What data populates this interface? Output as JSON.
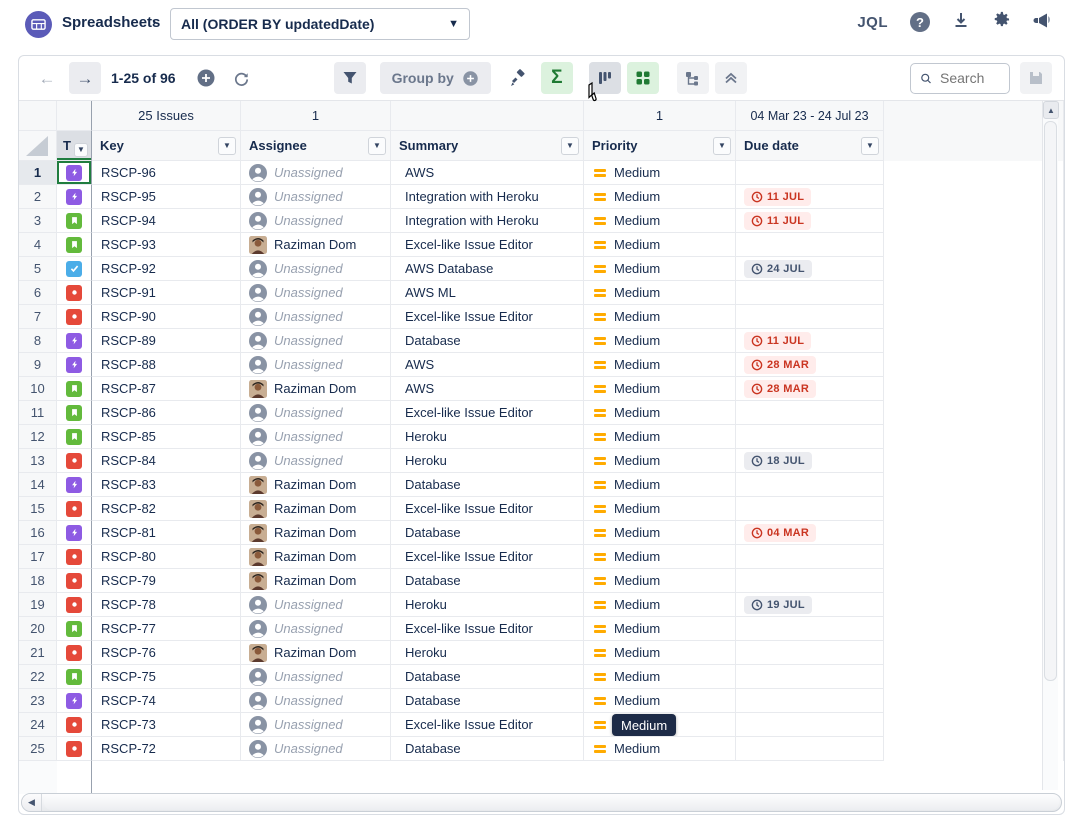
{
  "topbar": {
    "app_title": "Spreadsheets",
    "breadcrumb_chevron": "›",
    "view_selector": "All (ORDER BY updatedDate)",
    "jql_label": "JQL",
    "help_label": "?"
  },
  "toolbar": {
    "back_arrow": "←",
    "forward_arrow": "→",
    "pagination": "1-25 of 96",
    "group_by_label": "Group by",
    "sigma_label": "Σ",
    "search_placeholder": "Search"
  },
  "grid": {
    "summary_row": {
      "key": "25 Issues",
      "assignee": "1",
      "summary": "",
      "priority": "1",
      "due": "04 Mar 23 - 24 Jul 23"
    },
    "headers": {
      "type": "T",
      "key": "Key",
      "assignee": "Assignee",
      "summary": "Summary",
      "priority": "Priority",
      "due": "Due date"
    },
    "priority_tooltip": "Medium",
    "rows": [
      {
        "num": "1",
        "type": "epic",
        "key": "RSCP-96",
        "assignee": "Unassigned",
        "summary": "AWS",
        "priority": "Medium",
        "due": "",
        "due_style": ""
      },
      {
        "num": "2",
        "type": "epic",
        "key": "RSCP-95",
        "assignee": "Unassigned",
        "summary": "Integration with Heroku",
        "priority": "Medium",
        "due": "11 JUL",
        "due_style": "red"
      },
      {
        "num": "3",
        "type": "story",
        "key": "RSCP-94",
        "assignee": "Unassigned",
        "summary": "Integration with Heroku",
        "priority": "Medium",
        "due": "11 JUL",
        "due_style": "red"
      },
      {
        "num": "4",
        "type": "story",
        "key": "RSCP-93",
        "assignee": "Raziman Dom",
        "summary": "Excel-like Issue Editor",
        "priority": "Medium",
        "due": "",
        "due_style": ""
      },
      {
        "num": "5",
        "type": "task",
        "key": "RSCP-92",
        "assignee": "Unassigned",
        "summary": "AWS Database",
        "priority": "Medium",
        "due": "24 JUL",
        "due_style": "gray"
      },
      {
        "num": "6",
        "type": "bug",
        "key": "RSCP-91",
        "assignee": "Unassigned",
        "summary": "AWS ML",
        "priority": "Medium",
        "due": "",
        "due_style": ""
      },
      {
        "num": "7",
        "type": "bug",
        "key": "RSCP-90",
        "assignee": "Unassigned",
        "summary": "Excel-like Issue Editor",
        "priority": "Medium",
        "due": "",
        "due_style": ""
      },
      {
        "num": "8",
        "type": "epic",
        "key": "RSCP-89",
        "assignee": "Unassigned",
        "summary": "Database",
        "priority": "Medium",
        "due": "11 JUL",
        "due_style": "red"
      },
      {
        "num": "9",
        "type": "epic",
        "key": "RSCP-88",
        "assignee": "Unassigned",
        "summary": "AWS",
        "priority": "Medium",
        "due": "28 MAR",
        "due_style": "red"
      },
      {
        "num": "10",
        "type": "story",
        "key": "RSCP-87",
        "assignee": "Raziman Dom",
        "summary": "AWS",
        "priority": "Medium",
        "due": "28 MAR",
        "due_style": "red"
      },
      {
        "num": "11",
        "type": "story",
        "key": "RSCP-86",
        "assignee": "Unassigned",
        "summary": "Excel-like Issue Editor",
        "priority": "Medium",
        "due": "",
        "due_style": ""
      },
      {
        "num": "12",
        "type": "story",
        "key": "RSCP-85",
        "assignee": "Unassigned",
        "summary": "Heroku",
        "priority": "Medium",
        "due": "",
        "due_style": ""
      },
      {
        "num": "13",
        "type": "bug",
        "key": "RSCP-84",
        "assignee": "Unassigned",
        "summary": "Heroku",
        "priority": "Medium",
        "due": "18 JUL",
        "due_style": "gray"
      },
      {
        "num": "14",
        "type": "epic",
        "key": "RSCP-83",
        "assignee": "Raziman Dom",
        "summary": "Database",
        "priority": "Medium",
        "due": "",
        "due_style": ""
      },
      {
        "num": "15",
        "type": "bug",
        "key": "RSCP-82",
        "assignee": "Raziman Dom",
        "summary": "Excel-like Issue Editor",
        "priority": "Medium",
        "due": "",
        "due_style": ""
      },
      {
        "num": "16",
        "type": "epic",
        "key": "RSCP-81",
        "assignee": "Raziman Dom",
        "summary": "Database",
        "priority": "Medium",
        "due": "04 MAR",
        "due_style": "red"
      },
      {
        "num": "17",
        "type": "bug",
        "key": "RSCP-80",
        "assignee": "Raziman Dom",
        "summary": "Excel-like Issue Editor",
        "priority": "Medium",
        "due": "",
        "due_style": ""
      },
      {
        "num": "18",
        "type": "bug",
        "key": "RSCP-79",
        "assignee": "Raziman Dom",
        "summary": "Database",
        "priority": "Medium",
        "due": "",
        "due_style": ""
      },
      {
        "num": "19",
        "type": "bug",
        "key": "RSCP-78",
        "assignee": "Unassigned",
        "summary": "Heroku",
        "priority": "Medium",
        "due": "19 JUL",
        "due_style": "gray"
      },
      {
        "num": "20",
        "type": "story",
        "key": "RSCP-77",
        "assignee": "Unassigned",
        "summary": "Excel-like Issue Editor",
        "priority": "Medium",
        "due": "",
        "due_style": ""
      },
      {
        "num": "21",
        "type": "bug",
        "key": "RSCP-76",
        "assignee": "Raziman Dom",
        "summary": "Heroku",
        "priority": "Medium",
        "due": "",
        "due_style": ""
      },
      {
        "num": "22",
        "type": "story",
        "key": "RSCP-75",
        "assignee": "Unassigned",
        "summary": "Database",
        "priority": "Medium",
        "due": "",
        "due_style": ""
      },
      {
        "num": "23",
        "type": "epic",
        "key": "RSCP-74",
        "assignee": "Unassigned",
        "summary": "Database",
        "priority": "Medium",
        "due": "",
        "due_style": ""
      },
      {
        "num": "24",
        "type": "bug",
        "key": "RSCP-73",
        "assignee": "Unassigned",
        "summary": "Excel-like Issue Editor",
        "priority": "Medium",
        "due": "",
        "due_style": "",
        "tooltip": true
      },
      {
        "num": "25",
        "type": "bug",
        "key": "RSCP-72",
        "assignee": "Unassigned",
        "summary": "Database",
        "priority": "Medium",
        "due": "",
        "due_style": ""
      }
    ]
  },
  "colors": {
    "epic": "#8E5BE3",
    "story": "#63BA3C",
    "task": "#4BADE8",
    "bug": "#E5493A",
    "priority_medium": "#FFAB00",
    "selection_green": "#207D3F",
    "navy_text": "#172B4D",
    "due_red": "#CA3521",
    "due_gray": "#44546F",
    "logo_purple": "#5B5BB8"
  }
}
